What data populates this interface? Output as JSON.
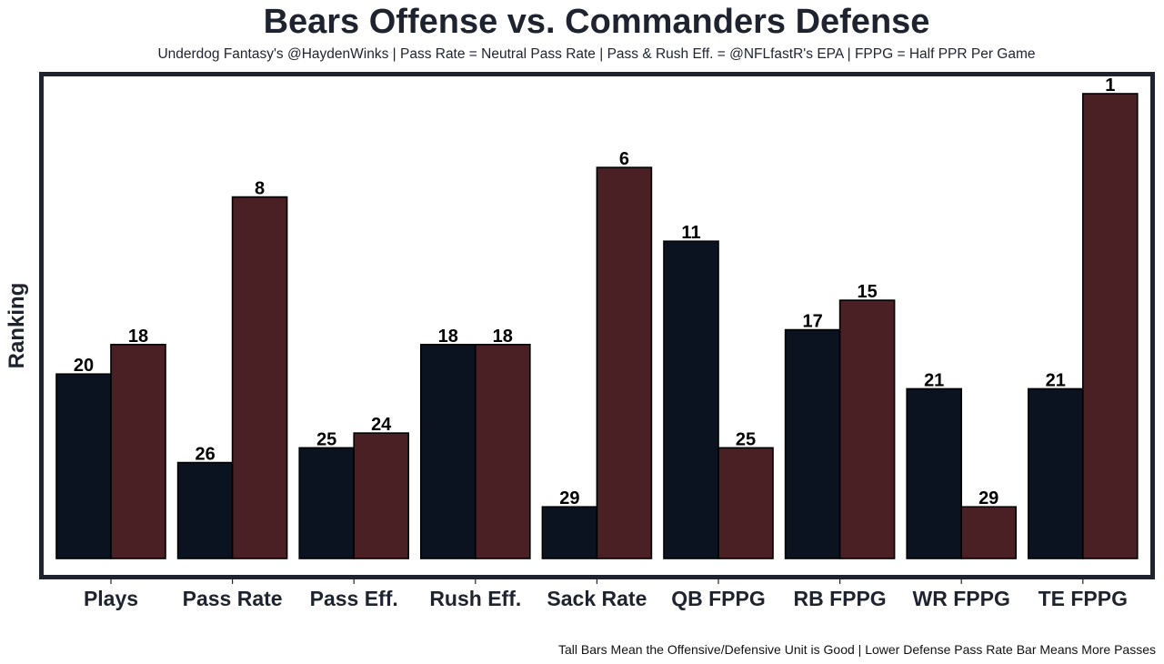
{
  "chart_data": {
    "type": "bar",
    "title": "Bears Offense vs. Commanders Defense",
    "subtitle": "Underdog Fantasy's @HaydenWinks | Pass Rate = Neutral Pass Rate | Pass & Rush Eff. = @NFLfastR's EPA | FPPG = Half PPR Per Game",
    "xlabel": "",
    "ylabel": "Ranking",
    "footnote": "Tall Bars Mean the Offensive/Defensive Unit is Good | Lower Defense Pass Rate Bar Means More Passes",
    "categories": [
      "Plays",
      "Pass Rate",
      "Pass Eff.",
      "Rush Eff.",
      "Sack Rate",
      "QB FPPG",
      "RB FPPG",
      "WR FPPG",
      "TE FPPG"
    ],
    "series": [
      {
        "name": "Bears Offense",
        "color": "#0b1220",
        "values": [
          20,
          26,
          25,
          18,
          29,
          11,
          17,
          21,
          21
        ]
      },
      {
        "name": "Commanders Defense",
        "color": "#4a2025",
        "values": [
          18,
          8,
          24,
          18,
          6,
          25,
          15,
          29,
          1
        ]
      }
    ],
    "value_semantics": "rank (1 = best, tallest bar)",
    "rank_range": [
      1,
      32
    ],
    "grid": false,
    "legend": "none"
  }
}
